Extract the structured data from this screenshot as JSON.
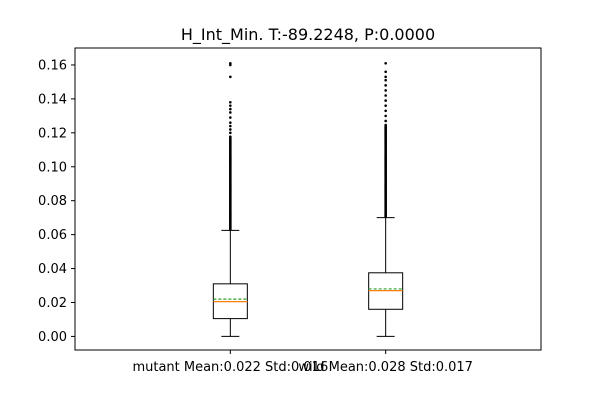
{
  "chart_data": {
    "type": "box",
    "title": "H_Int_Min. T:-89.2248, P:0.0000",
    "categories": [
      "mutant Mean:0.022 Std:0.016",
      "wild Mean:0.028 Std:0.017"
    ],
    "ylim": [
      -0.008,
      0.17
    ],
    "yticks": [
      0.0,
      0.02,
      0.04,
      0.06,
      0.08,
      0.1,
      0.12,
      0.14,
      0.16
    ],
    "ytick_labels": [
      "0.00",
      "0.02",
      "0.04",
      "0.06",
      "0.08",
      "0.10",
      "0.12",
      "0.14",
      "0.16"
    ],
    "grid": false,
    "series": [
      {
        "whisker_low": 0.0,
        "q1": 0.0105,
        "median": 0.0205,
        "mean": 0.022,
        "q3": 0.031,
        "whisker_high": 0.0625,
        "outliers_dense_range": [
          0.0625,
          0.118
        ],
        "outliers_sparse": [
          0.12,
          0.122,
          0.124,
          0.126,
          0.129,
          0.132,
          0.134,
          0.136,
          0.138,
          0.153,
          0.16,
          0.161
        ]
      },
      {
        "whisker_low": 0.0,
        "q1": 0.016,
        "median": 0.027,
        "mean": 0.028,
        "q3": 0.0375,
        "whisker_high": 0.07,
        "outliers_dense_range": [
          0.07,
          0.125
        ],
        "outliers_sparse": [
          0.127,
          0.13,
          0.133,
          0.136,
          0.139,
          0.142,
          0.145,
          0.148,
          0.151,
          0.153,
          0.156,
          0.161
        ]
      }
    ],
    "colors": {
      "box": "#000000",
      "median": "#ff7f0e",
      "mean": "#2ca02c",
      "outlier": "#000000"
    }
  }
}
